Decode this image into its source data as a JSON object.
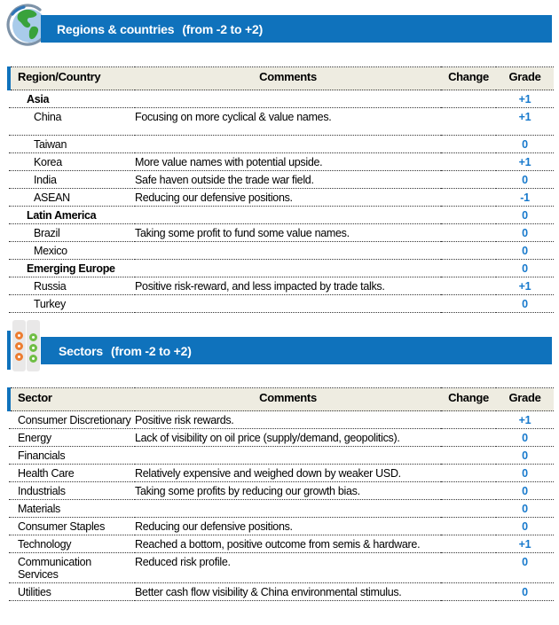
{
  "colors": {
    "bar_blue": "#0F72BC",
    "header_beige": "#EEECE1",
    "grade_blue": "#1779CC",
    "dot_orange": "#ED7D31",
    "dot_green": "#6FBE44"
  },
  "sections": [
    {
      "icon": "globe-icon",
      "title": "Regions & countries",
      "range_label": "(from -2 to +2)",
      "table": {
        "headers": [
          "Region/Country",
          "Comments",
          "Change",
          "Grade"
        ],
        "rows": [
          {
            "name": "Asia",
            "bold": true,
            "comment": "",
            "change": "",
            "grade": "+1"
          },
          {
            "name": "China",
            "comment": "Focusing on more cyclical & value names.",
            "change": "",
            "grade": "+1",
            "tall": true
          },
          {
            "name": "Taiwan",
            "comment": "",
            "change": "",
            "grade": "0"
          },
          {
            "name": "Korea",
            "comment": "More value names with potential upside.",
            "change": "",
            "grade": "+1"
          },
          {
            "name": "India",
            "comment": "Safe haven outside the trade war field.",
            "change": "",
            "grade": "0"
          },
          {
            "name": "ASEAN",
            "comment": "Reducing our defensive positions.",
            "change": "",
            "grade": "-1"
          },
          {
            "name": "Latin America",
            "bold": true,
            "comment": "",
            "change": "",
            "grade": "0"
          },
          {
            "name": "Brazil",
            "comment": "Taking some profit to fund some value names.",
            "change": "",
            "grade": "0"
          },
          {
            "name": "Mexico",
            "comment": "",
            "change": "",
            "grade": "0"
          },
          {
            "name": "Emerging Europe",
            "bold": true,
            "comment": "",
            "change": "",
            "grade": "0"
          },
          {
            "name": "Russia",
            "comment": "Positive risk-reward, and less impacted by trade talks.",
            "change": "",
            "grade": "+1"
          },
          {
            "name": "Turkey",
            "comment": "",
            "change": "",
            "grade": "0"
          }
        ]
      }
    },
    {
      "icon": "sectors-dots-icon",
      "title": "Sectors",
      "range_label": "(from -2 to +2)",
      "table": {
        "headers": [
          "Sector",
          "Comments",
          "Change",
          "Grade"
        ],
        "rows": [
          {
            "name": "Consumer Discretionary",
            "comment": "Positive risk rewards.",
            "change": "",
            "grade": "+1"
          },
          {
            "name": "Energy",
            "comment": "Lack of visibility on oil price (supply/demand, geopolitics).",
            "change": "",
            "grade": "0"
          },
          {
            "name": "Financials",
            "comment": "",
            "change": "",
            "grade": "0"
          },
          {
            "name": "Health Care",
            "comment": "Relatively expensive and weighed down by weaker USD.",
            "change": "",
            "grade": "0"
          },
          {
            "name": "Industrials",
            "comment": "Taking some profits by reducing our growth bias.",
            "change": "",
            "grade": "0"
          },
          {
            "name": "Materials",
            "comment": "",
            "change": "",
            "grade": "0"
          },
          {
            "name": "Consumer Staples",
            "comment": "Reducing our defensive positions.",
            "change": "",
            "grade": "0"
          },
          {
            "name": "Technology",
            "comment": "Reached a bottom, positive outcome from semis & hardware.",
            "change": "",
            "grade": "+1"
          },
          {
            "name": "Communication Services",
            "comment": "Reduced risk profile.",
            "change": "",
            "grade": "0"
          },
          {
            "name": "Utilities",
            "comment": "Better cash flow visibility & China environmental stimulus.",
            "change": "",
            "grade": "0"
          }
        ]
      }
    }
  ]
}
